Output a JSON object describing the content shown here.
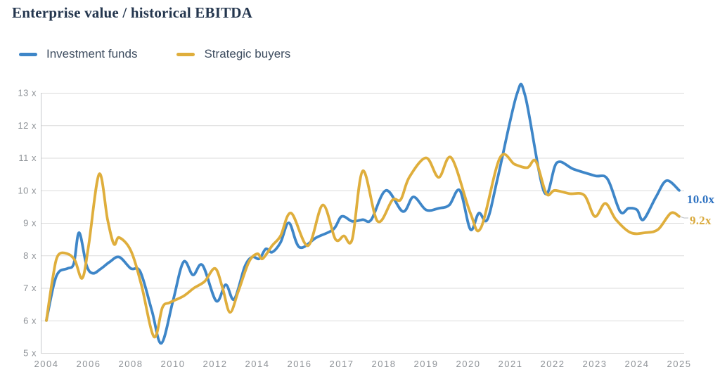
{
  "title": "Enterprise value / historical EBITDA",
  "legend": {
    "items": [
      {
        "label": "Investment funds",
        "color": "#3E86C8"
      },
      {
        "label": "Strategic buyers",
        "color": "#DFAE3C"
      }
    ]
  },
  "chart_data": {
    "type": "line",
    "title": "Enterprise value / historical EBITDA",
    "xlabel": "",
    "ylabel": "",
    "ylim": [
      5,
      13
    ],
    "grid": "horizontal",
    "legend_position": "top-left",
    "ytick_values": [
      13,
      12,
      11,
      10,
      9,
      8,
      7,
      6,
      5
    ],
    "ytick_labels": [
      "13 x",
      "12 x",
      "11 x",
      "10 x",
      "9 x",
      "8 x",
      "7 x",
      "6 x",
      "5 x"
    ],
    "xtick_years": [
      2004,
      2006,
      2008,
      2010,
      2012,
      2014,
      2016,
      2017,
      2018,
      2019,
      2020,
      2021,
      2022,
      2023,
      2024,
      2025
    ],
    "xtick_labels": [
      "2004",
      "2006",
      "2008",
      "2010",
      "2012",
      "2014",
      "2016",
      "2017",
      "2018",
      "2019",
      "2020",
      "2021",
      "2022",
      "2023",
      "2024",
      "2025"
    ],
    "x_axis_break_year": 2016,
    "series": [
      {
        "name": "Investment funds",
        "color": "#3E86C8",
        "end_label": "10.0x",
        "end_label_color": "#2E72C1",
        "points": [
          [
            2004.0,
            6.0
          ],
          [
            2004.35,
            7.1
          ],
          [
            2004.6,
            7.5
          ],
          [
            2005.0,
            7.6
          ],
          [
            2005.3,
            7.75
          ],
          [
            2005.55,
            8.7
          ],
          [
            2005.9,
            7.7
          ],
          [
            2006.2,
            7.45
          ],
          [
            2006.6,
            7.6
          ],
          [
            2007.0,
            7.8
          ],
          [
            2007.45,
            7.95
          ],
          [
            2008.0,
            7.6
          ],
          [
            2008.45,
            7.5
          ],
          [
            2009.0,
            6.3
          ],
          [
            2009.45,
            5.3
          ],
          [
            2010.0,
            6.6
          ],
          [
            2010.5,
            7.8
          ],
          [
            2010.95,
            7.4
          ],
          [
            2011.4,
            7.7
          ],
          [
            2012.05,
            6.6
          ],
          [
            2012.5,
            7.1
          ],
          [
            2012.9,
            6.65
          ],
          [
            2013.4,
            7.65
          ],
          [
            2013.75,
            7.95
          ],
          [
            2014.1,
            7.9
          ],
          [
            2014.4,
            8.2
          ],
          [
            2014.7,
            8.1
          ],
          [
            2015.1,
            8.4
          ],
          [
            2015.5,
            9.0
          ],
          [
            2016.0,
            8.25
          ],
          [
            2016.4,
            8.55
          ],
          [
            2016.8,
            8.8
          ],
          [
            2017.0,
            9.2
          ],
          [
            2017.25,
            9.05
          ],
          [
            2017.5,
            9.1
          ],
          [
            2017.7,
            9.1
          ],
          [
            2018.05,
            10.0
          ],
          [
            2018.45,
            9.35
          ],
          [
            2018.7,
            9.8
          ],
          [
            2019.0,
            9.4
          ],
          [
            2019.3,
            9.45
          ],
          [
            2019.55,
            9.55
          ],
          [
            2019.8,
            10.0
          ],
          [
            2020.05,
            8.8
          ],
          [
            2020.25,
            9.3
          ],
          [
            2020.45,
            9.1
          ],
          [
            2020.7,
            10.4
          ],
          [
            2021.15,
            12.95
          ],
          [
            2021.35,
            12.9
          ],
          [
            2021.8,
            9.95
          ],
          [
            2022.1,
            10.85
          ],
          [
            2022.5,
            10.65
          ],
          [
            2023.0,
            10.45
          ],
          [
            2023.3,
            10.35
          ],
          [
            2023.6,
            9.35
          ],
          [
            2023.8,
            9.45
          ],
          [
            2024.0,
            9.4
          ],
          [
            2024.15,
            9.1
          ],
          [
            2024.45,
            9.8
          ],
          [
            2024.7,
            10.3
          ],
          [
            2025.0,
            10.0
          ]
        ]
      },
      {
        "name": "Strategic buyers",
        "color": "#DFAE3C",
        "end_label": "9.2x",
        "end_label_color": "#D9A93C",
        "points": [
          [
            2004.0,
            6.0
          ],
          [
            2004.3,
            7.3
          ],
          [
            2004.55,
            8.0
          ],
          [
            2005.0,
            8.05
          ],
          [
            2005.35,
            7.85
          ],
          [
            2005.7,
            7.3
          ],
          [
            2006.0,
            8.3
          ],
          [
            2006.5,
            10.5
          ],
          [
            2006.9,
            9.1
          ],
          [
            2007.2,
            8.35
          ],
          [
            2007.45,
            8.55
          ],
          [
            2008.0,
            8.15
          ],
          [
            2008.5,
            7.1
          ],
          [
            2009.1,
            5.5
          ],
          [
            2009.5,
            6.4
          ],
          [
            2009.85,
            6.55
          ],
          [
            2010.5,
            6.75
          ],
          [
            2011.0,
            7.0
          ],
          [
            2011.5,
            7.2
          ],
          [
            2012.0,
            7.6
          ],
          [
            2012.35,
            7.0
          ],
          [
            2012.7,
            6.25
          ],
          [
            2013.1,
            6.9
          ],
          [
            2013.6,
            7.8
          ],
          [
            2014.0,
            8.05
          ],
          [
            2014.25,
            7.9
          ],
          [
            2014.7,
            8.3
          ],
          [
            2015.1,
            8.6
          ],
          [
            2015.6,
            9.3
          ],
          [
            2016.2,
            8.3
          ],
          [
            2016.55,
            9.55
          ],
          [
            2016.85,
            8.5
          ],
          [
            2017.05,
            8.6
          ],
          [
            2017.25,
            8.5
          ],
          [
            2017.5,
            10.6
          ],
          [
            2017.85,
            9.05
          ],
          [
            2018.2,
            9.7
          ],
          [
            2018.4,
            9.72
          ],
          [
            2018.6,
            10.4
          ],
          [
            2019.0,
            11.0
          ],
          [
            2019.3,
            10.4
          ],
          [
            2019.6,
            11.0
          ],
          [
            2020.05,
            9.3
          ],
          [
            2020.3,
            8.85
          ],
          [
            2020.75,
            11.0
          ],
          [
            2021.1,
            10.8
          ],
          [
            2021.4,
            10.7
          ],
          [
            2021.6,
            10.9
          ],
          [
            2021.85,
            9.9
          ],
          [
            2022.05,
            10.0
          ],
          [
            2022.4,
            9.9
          ],
          [
            2022.75,
            9.85
          ],
          [
            2023.0,
            9.2
          ],
          [
            2023.25,
            9.6
          ],
          [
            2023.5,
            9.1
          ],
          [
            2023.85,
            8.7
          ],
          [
            2024.2,
            8.7
          ],
          [
            2024.5,
            8.8
          ],
          [
            2024.8,
            9.3
          ],
          [
            2025.0,
            9.2
          ]
        ]
      }
    ]
  }
}
